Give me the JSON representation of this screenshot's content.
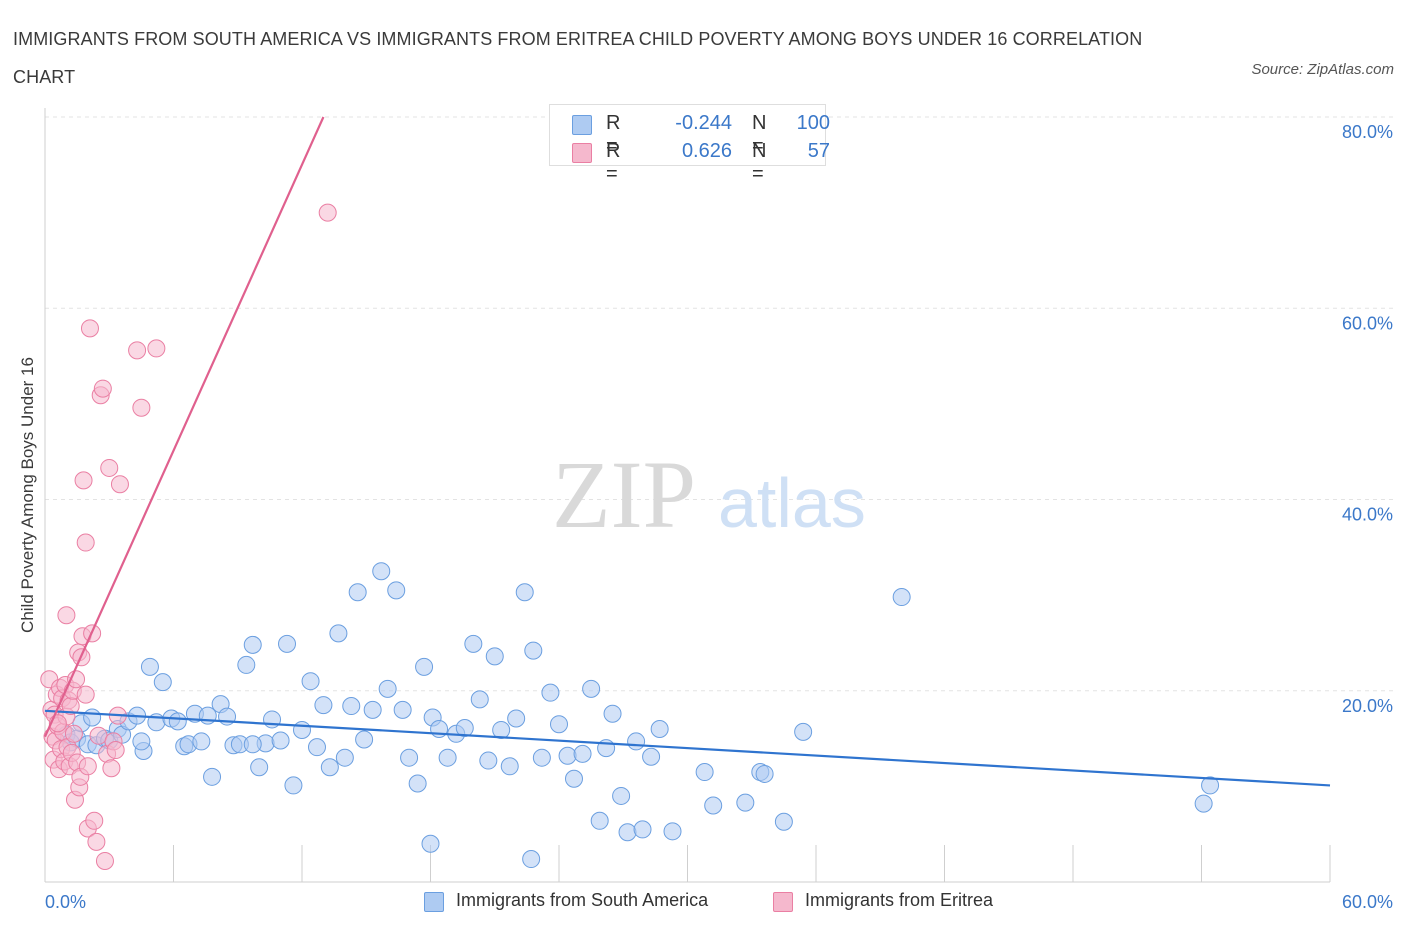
{
  "title": "IMMIGRANTS FROM SOUTH AMERICA VS IMMIGRANTS FROM ERITREA CHILD POVERTY AMONG BOYS UNDER 16 CORRELATION CHART",
  "source": "Source: ZipAtlas.com",
  "watermark": {
    "zip": "ZIP",
    "atlas": "atlas"
  },
  "colors": {
    "blue_fill": "#aecbf2",
    "blue_stroke": "#6b9fe0",
    "blue_line": "#2f74cf",
    "pink_fill": "#f5b8cd",
    "pink_stroke": "#ea7fa3",
    "pink_line": "#e0608e",
    "tick_label": "#3b78c9",
    "grid": "#e3e3e3"
  },
  "legend_top": [
    {
      "r_label": "R =",
      "r_value": "-0.244",
      "n_label": "N =",
      "n_value": "100"
    },
    {
      "r_label": "R =",
      "r_value": "0.626",
      "n_label": "N =",
      "n_value": "57"
    }
  ],
  "legend_bottom": [
    "Immigrants from South America",
    "Immigrants from Eritrea"
  ],
  "chart_data": {
    "type": "scatter",
    "title": "IMMIGRANTS FROM SOUTH AMERICA VS IMMIGRANTS FROM ERITREA CHILD POVERTY AMONG BOYS UNDER 16 CORRELATION CHART",
    "xlabel": "",
    "ylabel": "Child Poverty Among Boys Under 16",
    "xlim": [
      0,
      60
    ],
    "ylim": [
      0,
      80
    ],
    "x_tick_labels": [
      "0.0%",
      "60.0%"
    ],
    "y_tick_labels": [
      "20.0%",
      "40.0%",
      "60.0%",
      "80.0%"
    ],
    "y_ticks": [
      20,
      40,
      60,
      80
    ],
    "grid": true,
    "legend_position": "top-center and bottom",
    "series": [
      {
        "name": "Immigrants from South America",
        "color": "#6b9fe0",
        "trend": {
          "x": [
            0,
            60
          ],
          "y": [
            17.9,
            10.1
          ]
        },
        "points": [
          [
            1.0,
            15.4
          ],
          [
            1.2,
            14.6
          ],
          [
            1.5,
            15.0
          ],
          [
            1.7,
            16.6
          ],
          [
            2.0,
            14.4
          ],
          [
            2.2,
            17.2
          ],
          [
            2.4,
            14.3
          ],
          [
            2.8,
            15.0
          ],
          [
            3.0,
            14.8
          ],
          [
            3.4,
            16.0
          ],
          [
            3.6,
            15.4
          ],
          [
            3.9,
            16.8
          ],
          [
            4.3,
            17.4
          ],
          [
            4.6,
            13.7
          ],
          [
            4.9,
            22.5
          ],
          [
            5.2,
            16.7
          ],
          [
            5.5,
            20.9
          ],
          [
            5.9,
            17.1
          ],
          [
            6.2,
            16.8
          ],
          [
            6.5,
            14.2
          ],
          [
            6.7,
            14.4
          ],
          [
            7.0,
            17.6
          ],
          [
            7.3,
            14.7
          ],
          [
            7.6,
            17.4
          ],
          [
            7.8,
            11.0
          ],
          [
            8.2,
            18.6
          ],
          [
            8.5,
            17.3
          ],
          [
            8.8,
            14.3
          ],
          [
            9.1,
            14.4
          ],
          [
            9.4,
            22.7
          ],
          [
            9.7,
            24.8
          ],
          [
            10.0,
            12.0
          ],
          [
            10.3,
            14.5
          ],
          [
            10.6,
            17.0
          ],
          [
            11.0,
            14.8
          ],
          [
            11.3,
            24.9
          ],
          [
            11.6,
            10.1
          ],
          [
            12.0,
            15.9
          ],
          [
            12.4,
            21.0
          ],
          [
            12.7,
            14.1
          ],
          [
            13.0,
            18.5
          ],
          [
            13.3,
            12.0
          ],
          [
            13.7,
            26.0
          ],
          [
            14.0,
            13.0
          ],
          [
            14.3,
            18.4
          ],
          [
            14.6,
            30.3
          ],
          [
            14.9,
            14.9
          ],
          [
            15.3,
            18.0
          ],
          [
            15.7,
            32.5
          ],
          [
            16.0,
            20.2
          ],
          [
            16.4,
            30.5
          ],
          [
            16.7,
            18.0
          ],
          [
            17.0,
            13.0
          ],
          [
            17.4,
            10.3
          ],
          [
            17.7,
            22.5
          ],
          [
            18.1,
            17.2
          ],
          [
            18.4,
            16.0
          ],
          [
            18.8,
            13.0
          ],
          [
            19.2,
            15.5
          ],
          [
            19.6,
            16.1
          ],
          [
            20.0,
            24.9
          ],
          [
            20.3,
            19.1
          ],
          [
            20.7,
            12.7
          ],
          [
            21.0,
            23.6
          ],
          [
            21.3,
            15.9
          ],
          [
            21.7,
            12.1
          ],
          [
            22.0,
            17.1
          ],
          [
            22.4,
            30.3
          ],
          [
            22.8,
            24.2
          ],
          [
            23.2,
            13.0
          ],
          [
            23.6,
            19.8
          ],
          [
            24.0,
            16.5
          ],
          [
            24.4,
            13.2
          ],
          [
            24.7,
            10.8
          ],
          [
            25.1,
            13.4
          ],
          [
            25.5,
            20.2
          ],
          [
            25.9,
            6.4
          ],
          [
            26.2,
            14.0
          ],
          [
            26.5,
            17.6
          ],
          [
            26.9,
            9.0
          ],
          [
            27.2,
            5.2
          ],
          [
            27.6,
            14.7
          ],
          [
            27.9,
            5.5
          ],
          [
            28.3,
            13.1
          ],
          [
            28.7,
            16.0
          ],
          [
            29.3,
            5.3
          ],
          [
            30.8,
            11.5
          ],
          [
            31.2,
            8.0
          ],
          [
            32.7,
            8.3
          ],
          [
            33.4,
            11.5
          ],
          [
            33.6,
            11.3
          ],
          [
            34.5,
            6.3
          ],
          [
            35.4,
            15.7
          ],
          [
            40.0,
            29.8
          ],
          [
            54.1,
            8.2
          ],
          [
            54.4,
            10.1
          ],
          [
            18.0,
            4.0
          ],
          [
            22.7,
            2.4
          ],
          [
            9.7,
            14.4
          ],
          [
            4.5,
            14.7
          ]
        ]
      },
      {
        "name": "Immigrants from Eritrea",
        "color": "#ea7fa3",
        "trend": {
          "x": [
            0,
            13
          ],
          "y": [
            15.2,
            80.0
          ]
        },
        "points": [
          [
            0.2,
            21.2
          ],
          [
            0.3,
            18.0
          ],
          [
            0.35,
            15.2
          ],
          [
            0.4,
            12.8
          ],
          [
            0.45,
            17.5
          ],
          [
            0.5,
            14.8
          ],
          [
            0.55,
            19.6
          ],
          [
            0.6,
            16.3
          ],
          [
            0.65,
            11.8
          ],
          [
            0.7,
            20.3
          ],
          [
            0.75,
            13.9
          ],
          [
            0.8,
            19.2
          ],
          [
            0.85,
            15.7
          ],
          [
            0.9,
            12.6
          ],
          [
            0.95,
            20.6
          ],
          [
            1.0,
            17.3
          ],
          [
            1.0,
            27.9
          ],
          [
            1.05,
            14.1
          ],
          [
            1.1,
            19.0
          ],
          [
            1.15,
            12.1
          ],
          [
            1.2,
            18.4
          ],
          [
            1.25,
            13.5
          ],
          [
            1.3,
            20.0
          ],
          [
            1.35,
            15.5
          ],
          [
            1.4,
            8.6
          ],
          [
            1.45,
            21.2
          ],
          [
            1.5,
            12.5
          ],
          [
            1.55,
            24.0
          ],
          [
            1.6,
            9.9
          ],
          [
            1.65,
            11.0
          ],
          [
            1.7,
            23.5
          ],
          [
            1.75,
            25.7
          ],
          [
            1.8,
            42.0
          ],
          [
            1.9,
            35.5
          ],
          [
            1.9,
            19.6
          ],
          [
            2.0,
            5.6
          ],
          [
            2.0,
            12.1
          ],
          [
            2.1,
            57.9
          ],
          [
            2.2,
            26.0
          ],
          [
            2.3,
            6.4
          ],
          [
            2.4,
            4.2
          ],
          [
            2.5,
            15.3
          ],
          [
            2.6,
            50.9
          ],
          [
            2.7,
            51.6
          ],
          [
            2.8,
            2.2
          ],
          [
            2.9,
            13.4
          ],
          [
            3.0,
            43.3
          ],
          [
            3.1,
            11.9
          ],
          [
            3.2,
            14.7
          ],
          [
            3.3,
            13.8
          ],
          [
            3.4,
            17.4
          ],
          [
            3.5,
            41.6
          ],
          [
            4.3,
            55.6
          ],
          [
            4.5,
            49.6
          ],
          [
            5.2,
            55.8
          ],
          [
            13.2,
            70.0
          ],
          [
            0.6,
            16.6
          ]
        ]
      }
    ]
  }
}
